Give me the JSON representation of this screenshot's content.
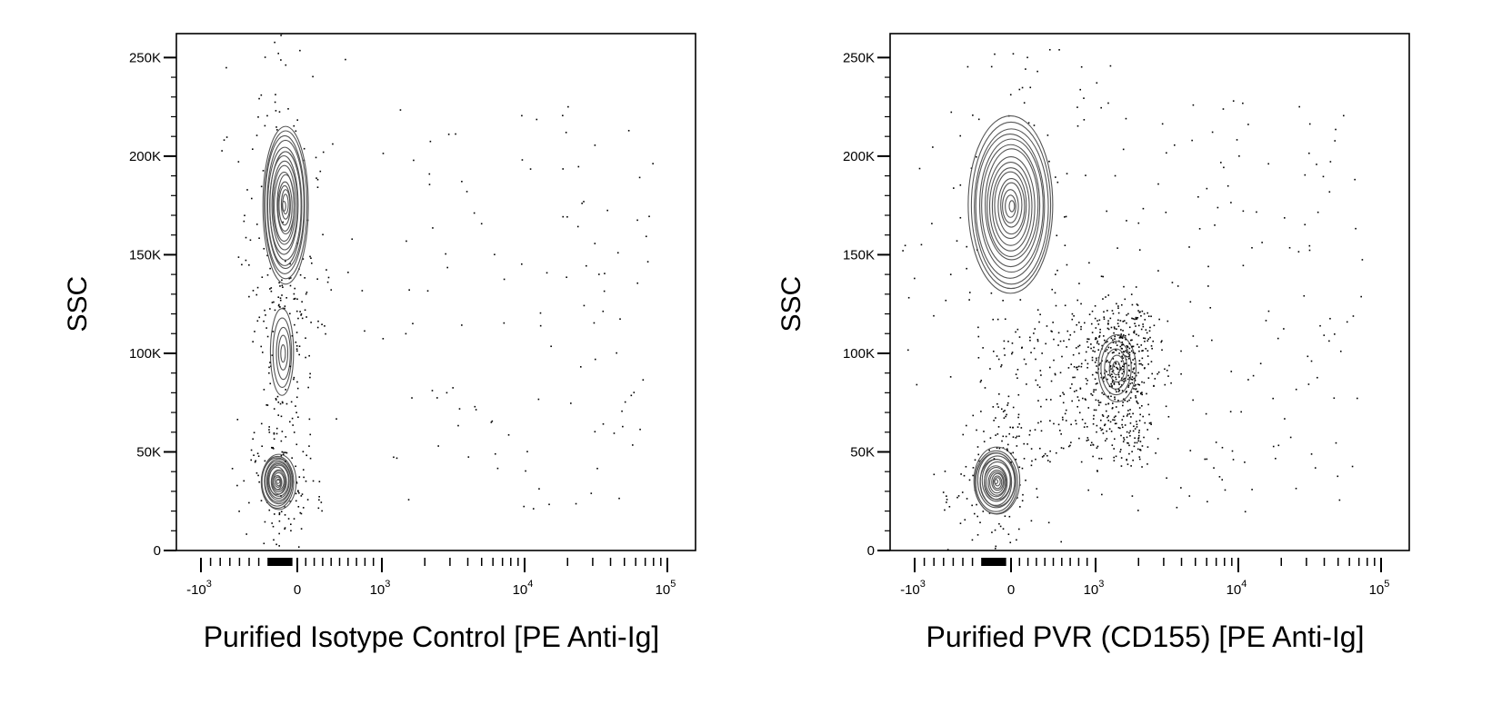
{
  "chart_data": [
    {
      "type": "scatter",
      "subtype": "flow-cytometry-contour",
      "xlabel": "Purified Isotype Control  [PE Anti-Ig]",
      "ylabel": "SSC",
      "x_scale": "biexponential",
      "x_ticks": [
        {
          "base": "-10",
          "exp": "3",
          "value": -1000
        },
        {
          "base": "0",
          "exp": "",
          "value": 0
        },
        {
          "base": "10",
          "exp": "3",
          "value": 1000
        },
        {
          "base": "10",
          "exp": "4",
          "value": 10000
        },
        {
          "base": "10",
          "exp": "5",
          "value": 100000
        }
      ],
      "y_ticks": [
        "0",
        "50K",
        "100K",
        "150K",
        "200K",
        "250K"
      ],
      "ylim": [
        0,
        262144
      ],
      "populations": [
        {
          "name": "",
          "center_x": -200,
          "center_y": 35000,
          "spread_x": 180,
          "spread_y": 14000
        },
        {
          "name": "",
          "center_x": -150,
          "center_y": 100000,
          "spread_x": 120,
          "spread_y": 22000
        },
        {
          "name": "",
          "center_x": -130,
          "center_y": 175000,
          "spread_x": 250,
          "spread_y": 40000
        }
      ]
    },
    {
      "type": "scatter",
      "subtype": "flow-cytometry-contour",
      "xlabel": "Purified PVR (CD155)  [PE Anti-Ig]",
      "ylabel": "SSC",
      "x_scale": "biexponential",
      "x_ticks": [
        {
          "base": "-10",
          "exp": "3",
          "value": -1000
        },
        {
          "base": "0",
          "exp": "",
          "value": 0
        },
        {
          "base": "10",
          "exp": "3",
          "value": 1000
        },
        {
          "base": "10",
          "exp": "4",
          "value": 10000
        },
        {
          "base": "10",
          "exp": "5",
          "value": 100000
        }
      ],
      "y_ticks": [
        "0",
        "50K",
        "100K",
        "150K",
        "200K",
        "250K"
      ],
      "ylim": [
        0,
        262144
      ],
      "populations": [
        {
          "name": "",
          "center_x": -150,
          "center_y": 35000,
          "spread_x": 250,
          "spread_y": 17000
        },
        {
          "name": "",
          "center_x": 1400,
          "center_y": 92000,
          "spread_x": 500,
          "spread_y": 17000
        },
        {
          "name": "",
          "center_x": 0,
          "center_y": 175000,
          "spread_x": 500,
          "spread_y": 45000
        }
      ]
    }
  ]
}
